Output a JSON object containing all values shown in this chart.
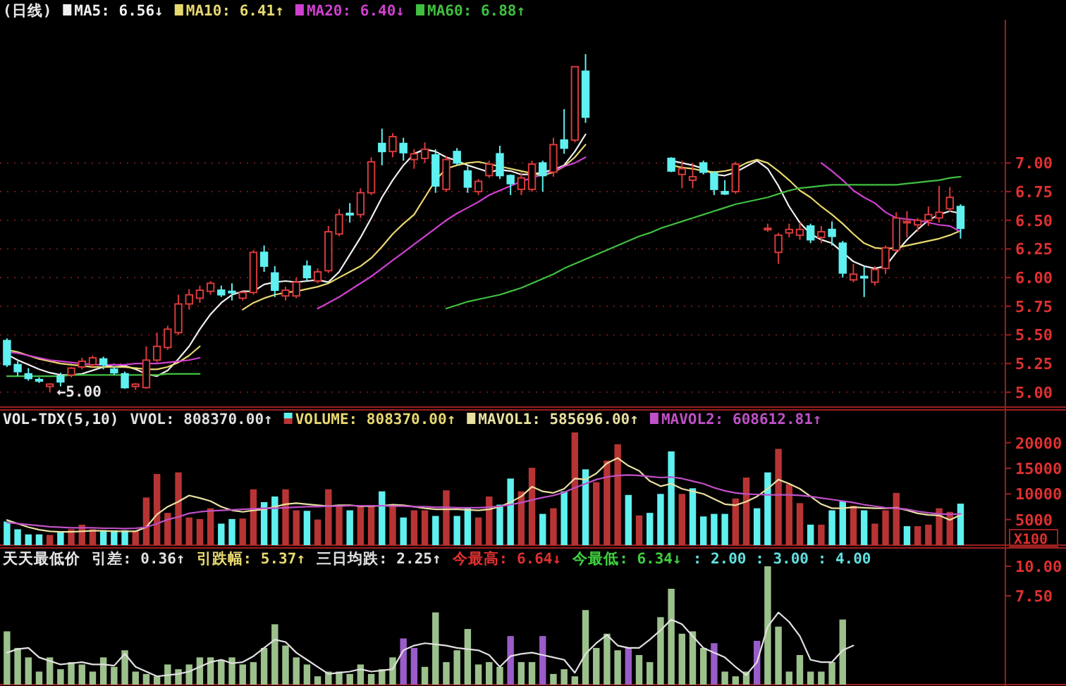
{
  "chart_data": [
    {
      "type": "candlestick",
      "title": "(日线)",
      "grid": "y",
      "legend": "top left",
      "categories": [
        null,
        null,
        null,
        null,
        null,
        null,
        null,
        null,
        null,
        null,
        null,
        null,
        null,
        null,
        null,
        null,
        null,
        null,
        null,
        null,
        null,
        null,
        null,
        null,
        null,
        null,
        null,
        null,
        null,
        null,
        null,
        null,
        null,
        null,
        null,
        null,
        null,
        null,
        null,
        null,
        null,
        null,
        null,
        null,
        null,
        null,
        null,
        null,
        null,
        null,
        null,
        null,
        null,
        null,
        null,
        null,
        null,
        null,
        null,
        null,
        null,
        null,
        null,
        null,
        null,
        null,
        null,
        null,
        null,
        null,
        null,
        null,
        null,
        null,
        null,
        null,
        null,
        null,
        null,
        null,
        null,
        null,
        null,
        null,
        null,
        null,
        null,
        null,
        null,
        null
      ],
      "ohlc": [
        [
          5.45,
          5.47,
          5.22,
          5.24
        ],
        [
          5.24,
          5.27,
          5.14,
          5.18
        ],
        [
          5.16,
          5.21,
          5.1,
          5.12
        ],
        [
          5.11,
          5.13,
          5.08,
          5.1
        ],
        [
          5.05,
          5.08,
          5.0,
          5.07
        ],
        [
          5.14,
          5.17,
          5.05,
          5.09
        ],
        [
          5.15,
          5.22,
          5.13,
          5.21
        ],
        [
          5.22,
          5.3,
          5.2,
          5.27
        ],
        [
          5.24,
          5.32,
          5.22,
          5.3
        ],
        [
          5.29,
          5.31,
          5.2,
          5.24
        ],
        [
          5.2,
          5.22,
          5.15,
          5.17
        ],
        [
          5.16,
          5.18,
          5.03,
          5.04
        ],
        [
          5.05,
          5.08,
          5.02,
          5.07
        ],
        [
          5.04,
          5.4,
          5.03,
          5.28
        ],
        [
          5.28,
          5.52,
          5.26,
          5.4
        ],
        [
          5.39,
          5.58,
          5.37,
          5.55
        ],
        [
          5.52,
          5.85,
          5.5,
          5.77
        ],
        [
          5.77,
          5.9,
          5.72,
          5.85
        ],
        [
          5.82,
          5.93,
          5.78,
          5.89
        ],
        [
          5.88,
          5.97,
          5.85,
          5.95
        ],
        [
          5.89,
          5.93,
          5.83,
          5.85
        ],
        [
          5.88,
          5.95,
          5.8,
          5.87
        ],
        [
          5.82,
          5.88,
          5.8,
          5.87
        ],
        [
          5.87,
          6.24,
          5.85,
          6.22
        ],
        [
          6.22,
          6.28,
          6.05,
          6.1
        ],
        [
          6.04,
          6.1,
          5.83,
          5.89
        ],
        [
          5.84,
          5.92,
          5.8,
          5.89
        ],
        [
          5.84,
          6.0,
          5.82,
          5.96
        ],
        [
          6.1,
          6.15,
          5.97,
          6.0
        ],
        [
          5.97,
          6.08,
          5.95,
          6.05
        ],
        [
          6.06,
          6.45,
          6.04,
          6.4
        ],
        [
          6.38,
          6.6,
          6.36,
          6.55
        ],
        [
          6.56,
          6.65,
          6.48,
          6.55
        ],
        [
          6.55,
          6.78,
          6.52,
          6.74
        ],
        [
          6.74,
          7.05,
          6.72,
          7.01
        ],
        [
          7.17,
          7.3,
          6.98,
          7.1
        ],
        [
          7.1,
          7.26,
          7.05,
          7.23
        ],
        [
          7.17,
          7.22,
          7.02,
          7.09
        ],
        [
          7.03,
          7.12,
          6.95,
          7.08
        ],
        [
          7.04,
          7.18,
          7.0,
          7.12
        ],
        [
          7.07,
          7.12,
          6.74,
          6.8
        ],
        [
          6.77,
          7.06,
          6.75,
          7.03
        ],
        [
          7.1,
          7.13,
          6.98,
          7.0
        ],
        [
          6.93,
          6.97,
          6.74,
          6.79
        ],
        [
          6.75,
          6.86,
          6.72,
          6.84
        ],
        [
          6.89,
          7.02,
          6.87,
          6.99
        ],
        [
          7.08,
          7.15,
          6.86,
          6.89
        ],
        [
          6.89,
          6.9,
          6.72,
          6.82
        ],
        [
          6.77,
          6.92,
          6.72,
          6.87
        ],
        [
          6.77,
          7.02,
          6.75,
          6.99
        ],
        [
          7.0,
          7.02,
          6.75,
          6.89
        ],
        [
          6.92,
          7.22,
          6.88,
          7.16
        ],
        [
          7.2,
          7.47,
          7.08,
          7.13
        ],
        [
          7.2,
          7.84,
          7.18,
          7.84
        ],
        [
          7.8,
          7.95,
          7.35,
          7.4
        ],
        null,
        null,
        null,
        null,
        null,
        null,
        null,
        [
          7.04,
          7.05,
          6.92,
          6.93
        ],
        [
          6.9,
          7.02,
          6.78,
          6.95
        ],
        [
          6.85,
          7.0,
          6.78,
          6.88
        ],
        [
          7.0,
          7.02,
          6.9,
          6.92
        ],
        [
          6.91,
          6.93,
          6.72,
          6.77
        ],
        [
          6.75,
          6.85,
          6.72,
          6.73
        ],
        [
          6.75,
          7.01,
          6.73,
          6.99
        ],
        null,
        null,
        [
          6.43,
          6.47,
          6.4,
          6.43
        ],
        [
          6.22,
          6.39,
          6.12,
          6.37
        ],
        [
          6.39,
          6.47,
          6.35,
          6.42
        ],
        [
          6.37,
          6.48,
          6.33,
          6.42
        ],
        [
          6.45,
          6.47,
          6.3,
          6.33
        ],
        [
          6.35,
          6.45,
          6.3,
          6.4
        ],
        [
          6.42,
          6.49,
          6.28,
          6.36
        ],
        [
          6.3,
          6.32,
          6.0,
          6.04
        ],
        [
          5.98,
          6.12,
          5.96,
          6.03
        ],
        [
          6.01,
          6.1,
          5.83,
          6.0
        ],
        [
          5.96,
          6.1,
          5.93,
          6.07
        ],
        [
          6.08,
          6.28,
          6.03,
          6.26
        ],
        [
          6.24,
          6.57,
          6.22,
          6.52
        ],
        [
          6.48,
          6.58,
          6.35,
          6.49
        ],
        [
          6.46,
          6.52,
          6.4,
          6.5
        ],
        [
          6.5,
          6.62,
          6.45,
          6.55
        ],
        [
          6.52,
          6.8,
          6.48,
          6.57
        ],
        [
          6.6,
          6.79,
          6.57,
          6.7
        ],
        [
          6.62,
          6.64,
          6.34,
          6.43
        ]
      ],
      "series": [
        {
          "name": "MA5",
          "type": "line",
          "color": "#f0f0f0",
          "values": [
            5.33,
            5.28,
            5.24,
            5.2,
            5.17,
            5.15,
            5.15,
            5.16,
            5.19,
            5.22,
            5.24,
            5.23,
            5.2,
            5.16,
            5.14,
            5.19,
            5.29,
            5.4,
            5.55,
            5.68,
            5.78,
            5.85,
            5.88,
            5.88,
            5.94,
            5.96,
            5.97,
            5.96,
            5.97,
            5.98,
            5.96,
            6.05,
            6.2,
            6.35,
            6.52,
            6.7,
            6.85,
            6.98,
            7.08,
            7.12,
            7.1,
            7.05,
            7.02,
            6.98,
            6.95,
            6.92,
            6.94,
            6.93,
            6.9,
            6.9,
            6.92,
            6.94,
            6.98,
            7.1,
            7.25,
            null,
            null,
            null,
            null,
            null,
            null,
            null,
            7.02,
            7.0,
            6.98,
            6.95,
            6.9,
            6.89,
            6.92,
            6.97,
            7.02,
            6.95,
            6.8,
            6.62,
            6.48,
            6.38,
            6.33,
            6.3,
            6.22,
            6.14,
            6.1,
            6.08,
            6.1,
            6.22,
            6.33,
            6.42,
            6.5,
            6.55,
            6.58,
            6.56
          ]
        },
        {
          "name": "MA10",
          "type": "line",
          "color": "#e8d870",
          "values": [
            5.37,
            5.35,
            5.32,
            5.29,
            5.27,
            5.25,
            5.24,
            5.23,
            5.22,
            5.22,
            5.22,
            5.22,
            5.21,
            5.2,
            5.2,
            5.22,
            5.26,
            5.32,
            5.4,
            null,
            null,
            null,
            5.72,
            5.78,
            5.82,
            5.85,
            5.87,
            5.88,
            5.9,
            5.92,
            5.95,
            6.0,
            6.05,
            6.1,
            6.17,
            6.27,
            6.38,
            6.47,
            6.55,
            6.7,
            6.85,
            6.95,
            6.98,
            7.0,
            7.01,
            6.99,
            6.97,
            6.95,
            6.93,
            6.91,
            6.89,
            6.92,
            6.97,
            7.05,
            7.16,
            null,
            null,
            null,
            null,
            null,
            null,
            null,
            6.98,
            6.96,
            6.95,
            6.93,
            6.92,
            6.93,
            6.95,
            7.0,
            7.03,
            7.0,
            6.93,
            6.85,
            6.76,
            6.7,
            6.62,
            6.55,
            6.47,
            6.38,
            6.3,
            6.26,
            6.25,
            6.26,
            6.28,
            6.3,
            6.32,
            6.34,
            6.37,
            6.41
          ]
        },
        {
          "name": "MA20",
          "type": "line",
          "color": "#d040d0",
          "values": [
            5.35,
            5.34,
            5.32,
            5.3,
            5.28,
            5.27,
            5.26,
            5.25,
            5.24,
            5.24,
            5.24,
            5.24,
            5.25,
            5.25,
            5.25,
            5.26,
            5.27,
            5.28,
            5.3,
            null,
            null,
            null,
            null,
            null,
            null,
            null,
            null,
            null,
            null,
            5.73,
            5.78,
            5.83,
            5.89,
            5.95,
            6.01,
            6.08,
            6.15,
            6.22,
            6.29,
            6.36,
            6.43,
            6.5,
            6.56,
            6.61,
            6.66,
            6.72,
            6.76,
            6.8,
            6.84,
            6.87,
            6.9,
            6.93,
            6.97,
            7.0,
            7.05,
            null,
            null,
            null,
            null,
            null,
            null,
            null,
            null,
            null,
            null,
            null,
            null,
            null,
            null,
            null,
            null,
            null,
            null,
            null,
            null,
            null,
            7.0,
            6.93,
            6.85,
            6.76,
            6.7,
            6.65,
            6.57,
            6.52,
            6.51,
            6.5,
            6.48,
            6.46,
            6.45,
            6.4
          ]
        },
        {
          "name": "MA60",
          "type": "line",
          "color": "#40c040",
          "values": [
            5.14,
            5.14,
            5.14,
            5.14,
            5.14,
            5.14,
            5.15,
            5.15,
            5.15,
            5.15,
            5.15,
            5.15,
            5.15,
            5.15,
            5.15,
            5.16,
            5.16,
            5.16,
            5.16,
            null,
            null,
            null,
            null,
            null,
            null,
            null,
            null,
            null,
            null,
            null,
            null,
            null,
            null,
            null,
            null,
            null,
            null,
            null,
            null,
            null,
            null,
            5.73,
            5.76,
            5.79,
            5.81,
            5.83,
            5.85,
            5.88,
            5.91,
            5.95,
            5.99,
            6.03,
            6.08,
            6.12,
            6.16,
            6.2,
            6.24,
            6.28,
            6.32,
            6.36,
            6.39,
            6.43,
            6.46,
            6.49,
            6.52,
            6.55,
            6.58,
            6.61,
            6.64,
            6.66,
            6.68,
            6.7,
            6.73,
            6.76,
            6.78,
            6.79,
            6.8,
            6.81,
            6.81,
            6.81,
            6.81,
            6.81,
            6.81,
            6.81,
            6.82,
            6.83,
            6.84,
            6.85,
            6.87,
            6.88
          ]
        }
      ],
      "annotations": [
        "←5.00",
        ": 6.56↓",
        ": 6.41↑",
        ": 6.40↓",
        ": 6.88↑"
      ],
      "ylim": [
        4.87,
        8.25
      ],
      "yticks": [
        {
          "value": 5,
          "label": "5.00"
        },
        {
          "value": 5.25,
          "label": "5.25"
        },
        {
          "value": 5.5,
          "label": "5.50"
        },
        {
          "value": 5.75,
          "label": "5.75"
        },
        {
          "value": 6,
          "label": "6.00"
        },
        {
          "value": 6.25,
          "label": "6.25"
        },
        {
          "value": 6.5,
          "label": "6.50"
        },
        {
          "value": 6.75,
          "label": "6.75"
        },
        {
          "value": 7,
          "label": "7.00"
        }
      ]
    },
    {
      "type": "bar",
      "title": "VOL-TDX(5,10)",
      "ylabel": "X100",
      "legend": "top left",
      "categories": [
        null,
        null,
        null,
        null,
        null,
        null,
        null,
        null,
        null,
        null,
        null,
        null,
        null,
        null,
        null,
        null,
        null,
        null,
        null,
        null,
        null,
        null,
        null,
        null,
        null,
        null,
        null,
        null,
        null,
        null,
        null,
        null,
        null,
        null,
        null,
        null,
        null,
        null,
        null,
        null,
        null,
        null,
        null,
        null,
        null,
        null,
        null,
        null,
        null,
        null,
        null,
        null,
        null,
        null,
        null,
        null,
        null,
        null,
        null,
        null,
        null,
        null,
        null,
        null,
        null,
        null,
        null,
        null,
        null,
        null,
        null,
        null,
        null,
        null,
        null,
        null,
        null,
        null,
        null,
        null,
        null,
        null,
        null,
        null,
        null,
        null,
        null,
        null,
        null,
        null
      ],
      "series": [
        {
          "name": "VOLUME",
          "type": "bar",
          "values": [
            4600,
            3100,
            2100,
            2100,
            2000,
            2600,
            3100,
            4000,
            3100,
            2900,
            2900,
            2900,
            2800,
            9300,
            13900,
            6300,
            14200,
            5400,
            5100,
            7200,
            4200,
            5100,
            5200,
            10900,
            8400,
            9500,
            10900,
            6800,
            6700,
            5000,
            10900,
            7700,
            6800,
            7700,
            7700,
            10500,
            7700,
            5400,
            6800,
            6800,
            5700,
            10700,
            5700,
            7200,
            5400,
            9500,
            7900,
            13000,
            10500,
            15100,
            6100,
            7200,
            10500,
            22000,
            14800,
            12300,
            16500,
            19700,
            9800,
            5800,
            6300,
            10000,
            18300,
            10000,
            11100,
            5600,
            6100,
            6100,
            9100,
            13200,
            7200,
            14200,
            18800,
            11900,
            8200,
            4000,
            4000,
            6800,
            8600,
            7700,
            6800,
            4200,
            6800,
            10200,
            3700,
            3700,
            4000,
            7200,
            6500,
            8100
          ],
          "colors": [
            "#5ff0f0",
            "#5ff0f0",
            "#5ff0f0",
            "#5ff0f0",
            "#b83434",
            "#5ff0f0",
            "#b83434",
            "#b83434",
            "#b83434",
            "#5ff0f0",
            "#5ff0f0",
            "#5ff0f0",
            "#b83434",
            "#b83434",
            "#b83434",
            "#b83434",
            "#b83434",
            "#b83434",
            "#b83434",
            "#b83434",
            "#5ff0f0",
            "#5ff0f0",
            "#b83434",
            "#b83434",
            "#5ff0f0",
            "#5ff0f0",
            "#b83434",
            "#b83434",
            "#5ff0f0",
            "#b83434",
            "#b83434",
            "#b83434",
            "#5ff0f0",
            "#b83434",
            "#b83434",
            "#5ff0f0",
            "#b83434",
            "#5ff0f0",
            "#b83434",
            "#b83434",
            "#5ff0f0",
            "#b83434",
            "#5ff0f0",
            "#5ff0f0",
            "#b83434",
            "#b83434",
            "#5ff0f0",
            "#5ff0f0",
            "#b83434",
            "#b83434",
            "#5ff0f0",
            "#b83434",
            "#5ff0f0",
            "#b83434",
            "#5ff0f0",
            "#b83434",
            "#b83434",
            "#b83434",
            "#5ff0f0",
            "#b83434",
            "#5ff0f0",
            "#5ff0f0",
            "#5ff0f0",
            "#b83434",
            "#5ff0f0",
            "#5ff0f0",
            "#5ff0f0",
            "#5ff0f0",
            "#b83434",
            "#b83434",
            "#5ff0f0",
            "#5ff0f0",
            "#b83434",
            "#b83434",
            "#b83434",
            "#5ff0f0",
            "#b83434",
            "#5ff0f0",
            "#5ff0f0",
            "#b83434",
            "#5ff0f0",
            "#b83434",
            "#b83434",
            "#b83434",
            "#5ff0f0",
            "#b83434",
            "#b83434",
            "#b83434",
            "#b83434",
            "#5ff0f0"
          ]
        },
        {
          "name": "MAVOL1",
          "type": "line",
          "color": "#e8e0a0",
          "values": [
            4900,
            4200,
            3500,
            3000,
            2700,
            2600,
            2600,
            2700,
            2800,
            2800,
            2700,
            2700,
            2700,
            3500,
            6000,
            7500,
            8500,
            9700,
            9200,
            8600,
            7500,
            6800,
            6500,
            6800,
            7000,
            7500,
            8000,
            8200,
            8000,
            7800,
            7600,
            7800,
            7800,
            7600,
            7600,
            7700,
            7900,
            7800,
            7500,
            7200,
            7000,
            7000,
            7000,
            6900,
            6800,
            7000,
            7500,
            8400,
            9500,
            11400,
            10500,
            10200,
            11000,
            13000,
            12800,
            14000,
            16000,
            17000,
            15500,
            14500,
            12500,
            11500,
            12000,
            11000,
            10500,
            10000,
            9000,
            8000,
            7800,
            8500,
            9500,
            11000,
            12800,
            12000,
            11000,
            9500,
            8000,
            7200,
            7200,
            7400,
            7300,
            7200,
            7200,
            7300,
            6800,
            6200,
            5900,
            5800,
            4900,
            5900
          ]
        },
        {
          "name": "MAVOL2",
          "type": "line",
          "color": "#c050c8",
          "values": [
            4400,
            4200,
            4000,
            3800,
            3600,
            3500,
            3400,
            3400,
            3400,
            3300,
            3300,
            3200,
            3300,
            3500,
            4200,
            5000,
            5500,
            6200,
            6500,
            6700,
            6800,
            6900,
            7000,
            7100,
            7200,
            7200,
            7300,
            7400,
            7500,
            7500,
            7600,
            7600,
            7700,
            7700,
            7700,
            7700,
            7600,
            7600,
            7500,
            7500,
            7400,
            7400,
            7300,
            7300,
            7300,
            7400,
            7600,
            7900,
            8300,
            8800,
            9300,
            9700,
            10300,
            11200,
            12000,
            12800,
            13300,
            13600,
            13700,
            13600,
            13400,
            13200,
            13300,
            13000,
            12500,
            12000,
            11200,
            10600,
            10200,
            10000,
            9900,
            9800,
            9800,
            9800,
            9700,
            9500,
            9200,
            8900,
            8600,
            8300,
            7900,
            7600,
            7300,
            7200,
            7000,
            6600,
            6300,
            6100,
            6000,
            6100
          ]
        }
      ],
      "annotations": [
        "VVOL: 808370.00↑",
        ": 808370.00↑",
        ": 585696.00↑",
        ": 608612.81↑"
      ],
      "ylim": [
        0,
        26400
      ],
      "yticks": [
        5000,
        10000,
        15000,
        20000
      ]
    },
    {
      "type": "bar",
      "title": "天天最低价",
      "categories": [
        null,
        null,
        null,
        null,
        null,
        null,
        null,
        null,
        null,
        null,
        null,
        null,
        null,
        null,
        null,
        null,
        null,
        null,
        null,
        null,
        null,
        null,
        null,
        null,
        null,
        null,
        null,
        null,
        null,
        null,
        null,
        null,
        null,
        null,
        null,
        null,
        null,
        null,
        null,
        null,
        null,
        null,
        null,
        null,
        null,
        null,
        null,
        null,
        null,
        null,
        null,
        null,
        null,
        null,
        null,
        null,
        null,
        null,
        null,
        null,
        null,
        null,
        null,
        null,
        null,
        null,
        null,
        null,
        null,
        null,
        null,
        null,
        null,
        null,
        null,
        null,
        null,
        null,
        null,
        null,
        null,
        null,
        null,
        null,
        null,
        null,
        null,
        null,
        null,
        null
      ],
      "series": [
        {
          "type": "bar",
          "values": [
            4.5,
            3.1,
            2.3,
            1.1,
            2.3,
            1.3,
            1.9,
            1.7,
            1.1,
            2.3,
            1.5,
            2.9,
            1.1,
            0.9,
            0.7,
            1.7,
            1.3,
            1.7,
            2.3,
            2.3,
            2.1,
            2.3,
            1.7,
            1.9,
            3.1,
            5.1,
            3.3,
            2.3,
            1.7,
            0.7,
            1.1,
            1.1,
            0.9,
            1.7,
            0.9,
            1.3,
            2.3,
            3.9,
            3.1,
            1.5,
            6.1,
            1.9,
            2.9,
            4.7,
            1.7,
            1.9,
            1.5,
            4.1,
            1.9,
            1.9,
            4.1,
            0.9,
            1.3,
            0.7,
            6.3,
            3.1,
            4.3,
            2.9,
            3.1,
            2.5,
            1.9,
            5.7,
            8.1,
            4.3,
            4.5,
            3.1,
            3.5,
            1.1,
            0.7,
            1.1,
            3.7,
            10.0,
            4.9,
            1.1,
            2.5,
            1.1,
            1.1,
            1.9,
            5.5,
            null,
            null,
            null,
            null,
            null,
            null,
            null,
            null,
            null,
            null,
            null
          ],
          "colors": [
            "#9cc08c",
            "#9cc08c",
            "#9cc08c",
            "#9cc08c",
            "#9cc08c",
            "#9cc08c",
            "#9cc08c",
            "#9cc08c",
            "#9cc08c",
            "#9cc08c",
            "#9cc08c",
            "#9cc08c",
            "#9cc08c",
            "#9cc08c",
            "#9cc08c",
            "#9cc08c",
            "#9cc08c",
            "#9cc08c",
            "#9cc08c",
            "#9cc08c",
            "#9cc08c",
            "#9cc08c",
            "#9cc08c",
            "#9cc08c",
            "#9cc08c",
            "#9cc08c",
            "#9cc08c",
            "#9cc08c",
            "#9cc08c",
            "#9cc08c",
            "#9cc08c",
            "#9cc08c",
            "#9cc08c",
            "#9cc08c",
            "#9cc08c",
            "#9cc08c",
            "#9cc08c",
            "#9a5cc8",
            "#9a5cc8",
            "#9cc08c",
            "#9cc08c",
            "#9cc08c",
            "#9cc08c",
            "#9cc08c",
            "#9cc08c",
            "#9cc08c",
            "#9cc08c",
            "#9a5cc8",
            "#9cc08c",
            "#9cc08c",
            "#9a5cc8",
            "#9cc08c",
            "#9cc08c",
            "#9cc08c",
            "#9cc08c",
            "#9cc08c",
            "#9cc08c",
            "#9cc08c",
            "#9a5cc8",
            "#9cc08c",
            "#9cc08c",
            "#9cc08c",
            "#9cc08c",
            "#9cc08c",
            "#9cc08c",
            "#9cc08c",
            "#9a5cc8",
            "#9cc08c",
            "#9cc08c",
            "#9cc08c",
            "#9a5cc8",
            "#9cc08c",
            "#9cc08c",
            "#9cc08c",
            "#9cc08c",
            "#9cc08c",
            "#9cc08c",
            "#9cc08c",
            "#9cc08c",
            null,
            null,
            null,
            null,
            null,
            null,
            null,
            null,
            null,
            null,
            null
          ]
        },
        {
          "type": "line",
          "color": "#e0e0e0",
          "values": [
            2.7,
            3.0,
            3.1,
            2.3,
            2.0,
            1.7,
            1.8,
            1.9,
            1.7,
            1.7,
            1.6,
            2.6,
            1.5,
            1.1,
            0.7,
            0.8,
            0.9,
            1.1,
            1.5,
            1.9,
            2.1,
            1.8,
            1.9,
            2.4,
            3.1,
            3.8,
            3.6,
            2.7,
            2.1,
            1.5,
            0.9,
            1.0,
            1.1,
            1.3,
            1.1,
            1.2,
            1.3,
            2.9,
            3.3,
            3.5,
            3.4,
            3.3,
            3.1,
            3.0,
            2.9,
            2.5,
            1.5,
            2.4,
            2.6,
            2.7,
            2.5,
            2.3,
            2.1,
            1.0,
            2.6,
            3.5,
            4.2,
            3.3,
            3.1,
            3.1,
            3.8,
            4.6,
            5.5,
            5.1,
            4.1,
            3.1,
            2.7,
            2.3,
            1.5,
            0.8,
            1.9,
            4.9,
            6.1,
            5.3,
            4.1,
            2.1,
            1.9,
            1.9,
            2.9,
            3.3,
            null,
            null,
            null,
            null,
            null,
            null,
            null,
            null,
            null,
            null
          ]
        }
      ],
      "annotations": [
        "引差: 0.36↑",
        "引跌幅: 5.37↑",
        "三日均跌: 2.25↑",
        "今最高: 6.64↓",
        "今最低: 6.34↓",
        ": 2.00 : 3.00 : 4.00"
      ],
      "ylim": [
        0,
        11.55
      ],
      "yticks": [
        {
          "value": 7.5,
          "label": "7.50"
        },
        {
          "value": 10,
          "label": "10.00"
        }
      ]
    }
  ]
}
